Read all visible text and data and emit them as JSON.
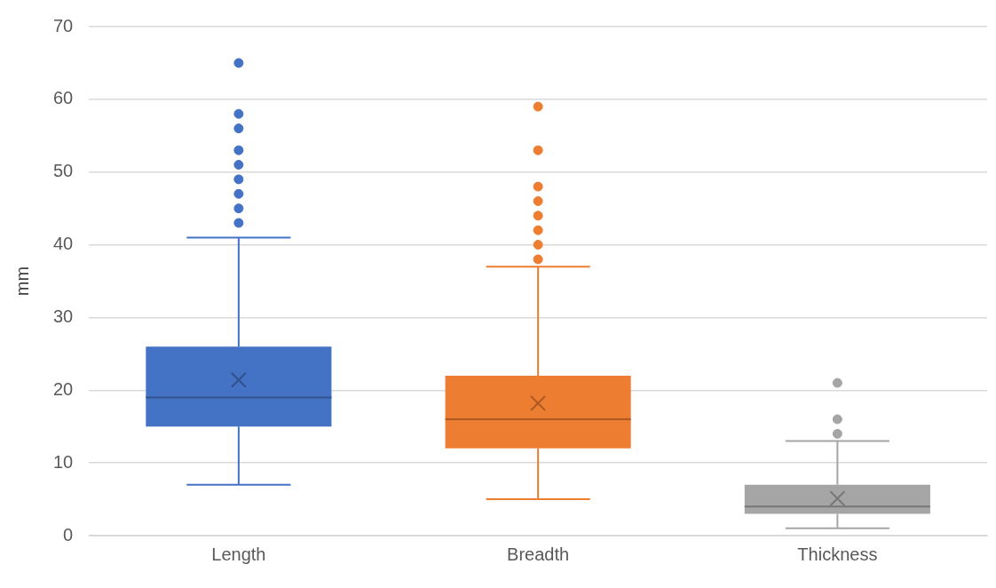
{
  "chart_data": {
    "type": "box",
    "ylabel": "mm",
    "categories": [
      "Length",
      "Breadth",
      "Thickness"
    ],
    "colors": [
      "#4472c4",
      "#ed7d31",
      "#a5a5a5"
    ],
    "boxes": [
      {
        "low": 7,
        "q1": 15,
        "median": 19,
        "q3": 26,
        "high": 41,
        "mean": 21.4,
        "outliers": [
          65,
          58,
          56,
          53,
          51,
          49,
          47,
          45,
          43
        ]
      },
      {
        "low": 5,
        "q1": 12,
        "median": 16,
        "q3": 22,
        "high": 37,
        "mean": 18.2,
        "outliers": [
          59,
          53,
          48,
          46,
          44,
          42,
          40,
          38
        ]
      },
      {
        "low": 1,
        "q1": 3,
        "median": 4,
        "q3": 7,
        "high": 13,
        "mean": 5.1,
        "outliers": [
          21,
          16,
          14
        ]
      }
    ],
    "ylim": [
      0,
      70
    ],
    "yticks": [
      0,
      10,
      20,
      30,
      40,
      50,
      60,
      70
    ],
    "grid": "y"
  }
}
